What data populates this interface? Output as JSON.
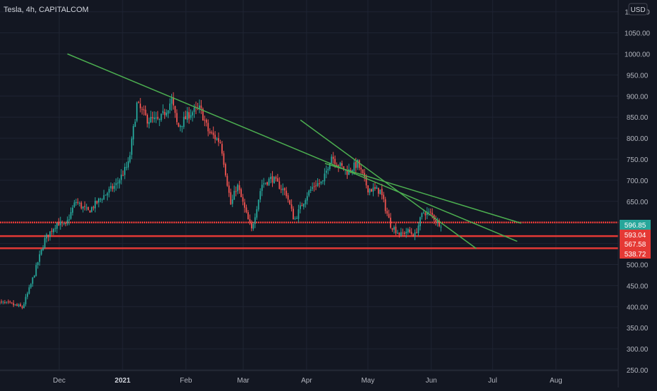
{
  "header": {
    "title": "Tesla, 4h, CAPITALCOM",
    "currency": "USD"
  },
  "colors": {
    "background": "#131722",
    "grid": "#1f2433",
    "axis_text": "#b2b5be",
    "up": "#26a69a",
    "down": "#ef5350",
    "trendline": "#4caf50",
    "level": "#e53935",
    "current_price": "#26a69a"
  },
  "chart_data": {
    "type": "candlestick",
    "symbol": "Tesla",
    "interval": "4h",
    "exchange": "CAPITALCOM",
    "currency": "USD",
    "grid": true,
    "x_ticks": [
      "Dec",
      "2021",
      "Feb",
      "Mar",
      "Apr",
      "May",
      "Jun",
      "Jul",
      "Aug"
    ],
    "y_ticks": [
      "250.00",
      "300.00",
      "350.00",
      "400.00",
      "450.00",
      "500.00",
      "550.00",
      "600.00",
      "650.00",
      "700.00",
      "750.00",
      "800.00",
      "850.00",
      "900.00",
      "950.00",
      "1000.00",
      "1050.00",
      "1100.00"
    ],
    "ylim": [
      240,
      1110
    ],
    "price_path": [
      [
        "2020-11-01",
        410
      ],
      [
        "2020-11-08",
        405
      ],
      [
        "2020-11-13",
        398
      ],
      [
        "2020-11-17",
        450
      ],
      [
        "2020-11-24",
        560
      ],
      [
        "2020-11-30",
        600
      ],
      [
        "2020-12-04",
        590
      ],
      [
        "2020-12-09",
        650
      ],
      [
        "2020-12-15",
        625
      ],
      [
        "2020-12-22",
        660
      ],
      [
        "2020-12-29",
        690
      ],
      [
        "2021-01-04",
        740
      ],
      [
        "2021-01-08",
        880
      ],
      [
        "2021-01-13",
        845
      ],
      [
        "2021-01-19",
        840
      ],
      [
        "2021-01-25",
        890
      ],
      [
        "2021-01-28",
        825
      ],
      [
        "2021-02-03",
        860
      ],
      [
        "2021-02-08",
        870
      ],
      [
        "2021-02-12",
        815
      ],
      [
        "2021-02-18",
        790
      ],
      [
        "2021-02-23",
        640
      ],
      [
        "2021-02-26",
        690
      ],
      [
        "2021-03-05",
        580
      ],
      [
        "2021-03-10",
        690
      ],
      [
        "2021-03-15",
        705
      ],
      [
        "2021-03-22",
        670
      ],
      [
        "2021-03-26",
        605
      ],
      [
        "2021-04-01",
        665
      ],
      [
        "2021-04-05",
        690
      ],
      [
        "2021-04-09",
        695
      ],
      [
        "2021-04-13",
        760
      ],
      [
        "2021-04-16",
        740
      ],
      [
        "2021-04-21",
        720
      ],
      [
        "2021-04-26",
        740
      ],
      [
        "2021-05-01",
        680
      ],
      [
        "2021-05-07",
        675
      ],
      [
        "2021-05-12",
        595
      ],
      [
        "2021-05-17",
        570
      ],
      [
        "2021-05-20",
        580
      ],
      [
        "2021-05-24",
        570
      ],
      [
        "2021-05-28",
        625
      ],
      [
        "2021-06-01",
        620
      ],
      [
        "2021-06-04",
        600
      ],
      [
        "2021-06-06",
        597
      ]
    ],
    "trendlines": [
      {
        "from": [
          "2020-12-05",
          1000
        ],
        "to": [
          "2021-07-13",
          555
        ]
      },
      {
        "from": [
          "2021-03-29",
          843
        ],
        "to": [
          "2021-06-23",
          538
        ]
      },
      {
        "from": [
          "2021-04-10",
          740
        ],
        "to": [
          "2021-07-15",
          598
        ]
      }
    ],
    "horizontal_levels": [
      600.0,
      567.6,
      538.7
    ],
    "price_labels": [
      {
        "value": "596.85",
        "kind": "current"
      },
      {
        "value": "593.04",
        "kind": "level"
      },
      {
        "value": "567.58",
        "kind": "level"
      },
      {
        "value": "538.72",
        "kind": "level"
      }
    ]
  }
}
